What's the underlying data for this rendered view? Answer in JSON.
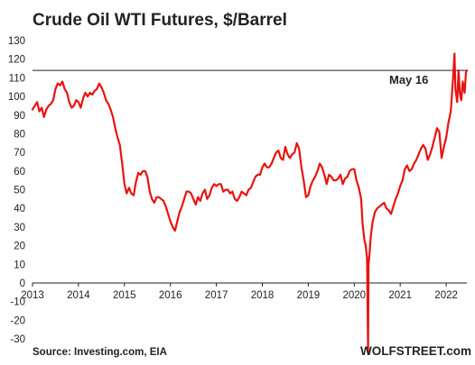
{
  "chart_data": {
    "type": "line",
    "title": "Crude Oil WTI Futures, $/Barrel",
    "xlabel": "",
    "ylabel": "",
    "ylim": [
      -30,
      130
    ],
    "yticks": [
      -30,
      -20,
      -10,
      0,
      10,
      20,
      30,
      40,
      50,
      60,
      70,
      80,
      90,
      100,
      110,
      120,
      130
    ],
    "xlim": [
      2013.0,
      2022.45
    ],
    "xticks": [
      "2013",
      "2014",
      "2015",
      "2016",
      "2017",
      "2018",
      "2019",
      "2020",
      "2021",
      "2022"
    ],
    "grid": false,
    "legend": "none",
    "series": [
      {
        "color": "#e8130f",
        "points": [
          [
            2013.0,
            93
          ],
          [
            2013.05,
            95
          ],
          [
            2013.1,
            97
          ],
          [
            2013.15,
            92
          ],
          [
            2013.2,
            94
          ],
          [
            2013.25,
            89
          ],
          [
            2013.3,
            93
          ],
          [
            2013.35,
            95
          ],
          [
            2013.4,
            96
          ],
          [
            2013.45,
            98
          ],
          [
            2013.5,
            104
          ],
          [
            2013.55,
            107
          ],
          [
            2013.6,
            106
          ],
          [
            2013.65,
            108
          ],
          [
            2013.7,
            104
          ],
          [
            2013.75,
            102
          ],
          [
            2013.8,
            97
          ],
          [
            2013.85,
            94
          ],
          [
            2013.9,
            95
          ],
          [
            2013.95,
            98
          ],
          [
            2014.0,
            97
          ],
          [
            2014.05,
            94
          ],
          [
            2014.1,
            99
          ],
          [
            2014.15,
            102
          ],
          [
            2014.2,
            100
          ],
          [
            2014.25,
            102
          ],
          [
            2014.3,
            101
          ],
          [
            2014.35,
            103
          ],
          [
            2014.4,
            104
          ],
          [
            2014.45,
            107
          ],
          [
            2014.5,
            105
          ],
          [
            2014.55,
            102
          ],
          [
            2014.6,
            98
          ],
          [
            2014.65,
            96
          ],
          [
            2014.7,
            93
          ],
          [
            2014.75,
            89
          ],
          [
            2014.8,
            83
          ],
          [
            2014.85,
            78
          ],
          [
            2014.9,
            74
          ],
          [
            2014.95,
            64
          ],
          [
            2015.0,
            53
          ],
          [
            2015.05,
            48
          ],
          [
            2015.1,
            51
          ],
          [
            2015.15,
            48
          ],
          [
            2015.2,
            47
          ],
          [
            2015.25,
            54
          ],
          [
            2015.3,
            59
          ],
          [
            2015.35,
            58
          ],
          [
            2015.4,
            60
          ],
          [
            2015.45,
            60
          ],
          [
            2015.5,
            57
          ],
          [
            2015.55,
            49
          ],
          [
            2015.6,
            45
          ],
          [
            2015.65,
            43
          ],
          [
            2015.7,
            46
          ],
          [
            2015.75,
            46
          ],
          [
            2015.8,
            45
          ],
          [
            2015.85,
            44
          ],
          [
            2015.9,
            41
          ],
          [
            2015.95,
            37
          ],
          [
            2016.0,
            33
          ],
          [
            2016.05,
            30
          ],
          [
            2016.1,
            28
          ],
          [
            2016.15,
            33
          ],
          [
            2016.2,
            38
          ],
          [
            2016.25,
            41
          ],
          [
            2016.3,
            45
          ],
          [
            2016.35,
            49
          ],
          [
            2016.4,
            49
          ],
          [
            2016.45,
            48
          ],
          [
            2016.5,
            45
          ],
          [
            2016.55,
            42
          ],
          [
            2016.6,
            46
          ],
          [
            2016.65,
            44
          ],
          [
            2016.7,
            48
          ],
          [
            2016.75,
            50
          ],
          [
            2016.8,
            45
          ],
          [
            2016.85,
            47
          ],
          [
            2016.9,
            51
          ],
          [
            2016.95,
            53
          ],
          [
            2017.0,
            52
          ],
          [
            2017.05,
            53
          ],
          [
            2017.1,
            53
          ],
          [
            2017.15,
            49
          ],
          [
            2017.2,
            50
          ],
          [
            2017.25,
            50
          ],
          [
            2017.3,
            48
          ],
          [
            2017.35,
            49
          ],
          [
            2017.4,
            45
          ],
          [
            2017.45,
            44
          ],
          [
            2017.5,
            46
          ],
          [
            2017.55,
            49
          ],
          [
            2017.6,
            48
          ],
          [
            2017.65,
            47
          ],
          [
            2017.7,
            50
          ],
          [
            2017.75,
            51
          ],
          [
            2017.8,
            54
          ],
          [
            2017.85,
            57
          ],
          [
            2017.9,
            58
          ],
          [
            2017.95,
            58
          ],
          [
            2018.0,
            62
          ],
          [
            2018.05,
            64
          ],
          [
            2018.1,
            62
          ],
          [
            2018.15,
            62
          ],
          [
            2018.2,
            64
          ],
          [
            2018.25,
            67
          ],
          [
            2018.3,
            70
          ],
          [
            2018.35,
            71
          ],
          [
            2018.4,
            67
          ],
          [
            2018.45,
            66
          ],
          [
            2018.5,
            73
          ],
          [
            2018.55,
            69
          ],
          [
            2018.6,
            67
          ],
          [
            2018.65,
            69
          ],
          [
            2018.7,
            70
          ],
          [
            2018.75,
            75
          ],
          [
            2018.8,
            72
          ],
          [
            2018.85,
            62
          ],
          [
            2018.9,
            55
          ],
          [
            2018.95,
            46
          ],
          [
            2019.0,
            47
          ],
          [
            2019.05,
            52
          ],
          [
            2019.1,
            55
          ],
          [
            2019.15,
            57
          ],
          [
            2019.2,
            60
          ],
          [
            2019.25,
            64
          ],
          [
            2019.3,
            62
          ],
          [
            2019.35,
            58
          ],
          [
            2019.4,
            53
          ],
          [
            2019.45,
            58
          ],
          [
            2019.5,
            57
          ],
          [
            2019.55,
            55
          ],
          [
            2019.6,
            55
          ],
          [
            2019.65,
            56
          ],
          [
            2019.7,
            58
          ],
          [
            2019.75,
            53
          ],
          [
            2019.8,
            56
          ],
          [
            2019.85,
            57
          ],
          [
            2019.9,
            60
          ],
          [
            2019.95,
            61
          ],
          [
            2020.0,
            61
          ],
          [
            2020.05,
            55
          ],
          [
            2020.1,
            51
          ],
          [
            2020.15,
            45
          ],
          [
            2020.18,
            32
          ],
          [
            2020.22,
            23
          ],
          [
            2020.25,
            20
          ],
          [
            2020.28,
            13
          ],
          [
            2020.3,
            -37
          ],
          [
            2020.31,
            10
          ],
          [
            2020.33,
            15
          ],
          [
            2020.36,
            25
          ],
          [
            2020.4,
            33
          ],
          [
            2020.45,
            38
          ],
          [
            2020.5,
            40
          ],
          [
            2020.55,
            41
          ],
          [
            2020.6,
            42
          ],
          [
            2020.65,
            43
          ],
          [
            2020.7,
            40
          ],
          [
            2020.75,
            39
          ],
          [
            2020.8,
            37
          ],
          [
            2020.85,
            41
          ],
          [
            2020.9,
            45
          ],
          [
            2020.95,
            48
          ],
          [
            2021.0,
            52
          ],
          [
            2021.05,
            55
          ],
          [
            2021.1,
            61
          ],
          [
            2021.15,
            63
          ],
          [
            2021.2,
            60
          ],
          [
            2021.25,
            61
          ],
          [
            2021.3,
            64
          ],
          [
            2021.35,
            66
          ],
          [
            2021.4,
            69
          ],
          [
            2021.45,
            72
          ],
          [
            2021.5,
            74
          ],
          [
            2021.55,
            72
          ],
          [
            2021.6,
            66
          ],
          [
            2021.65,
            69
          ],
          [
            2021.7,
            73
          ],
          [
            2021.75,
            78
          ],
          [
            2021.8,
            83
          ],
          [
            2021.85,
            81
          ],
          [
            2021.9,
            67
          ],
          [
            2021.95,
            73
          ],
          [
            2022.0,
            78
          ],
          [
            2022.05,
            86
          ],
          [
            2022.1,
            92
          ],
          [
            2022.15,
            110
          ],
          [
            2022.18,
            123
          ],
          [
            2022.2,
            104
          ],
          [
            2022.24,
            97
          ],
          [
            2022.27,
            114
          ],
          [
            2022.3,
            101
          ],
          [
            2022.33,
            98
          ],
          [
            2022.36,
            108
          ],
          [
            2022.4,
            102
          ],
          [
            2022.43,
            113
          ],
          [
            2022.45,
            114
          ]
        ]
      }
    ],
    "reference_line": {
      "value": 114,
      "label": "May 16"
    },
    "source": "Source: Investing.com,   EIA",
    "brand": "WOLFSTREET.com"
  }
}
